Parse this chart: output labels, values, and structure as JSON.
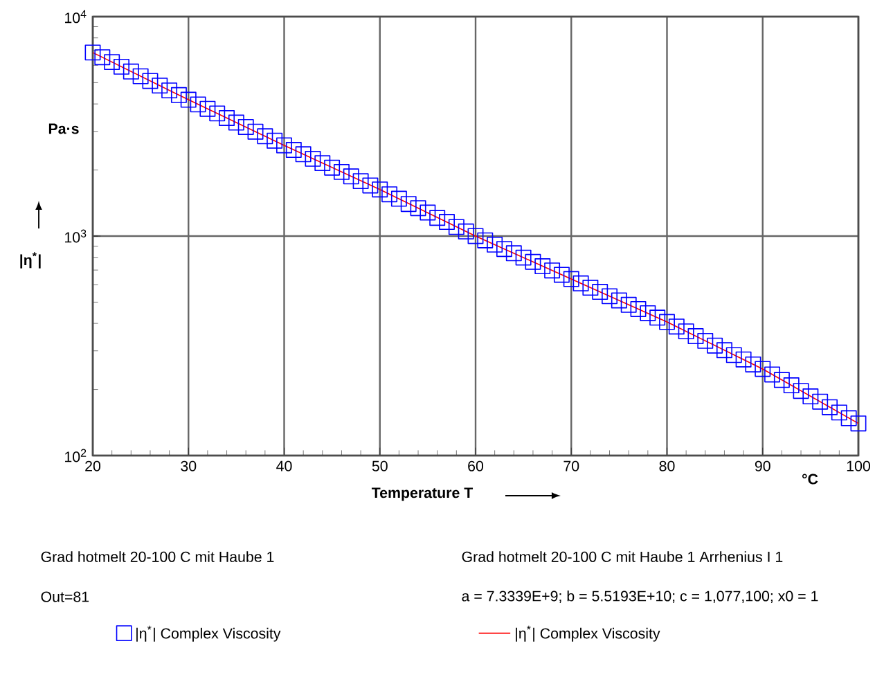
{
  "chart_data": {
    "type": "scatter",
    "xlabel": "Temperature T",
    "ylabel": "|η$^{*}$|",
    "x": [
      20,
      21,
      22,
      23,
      24,
      25,
      26,
      27,
      28,
      29,
      30,
      31,
      32,
      33,
      34,
      35,
      36,
      37,
      38,
      39,
      40,
      41,
      42,
      43,
      44,
      45,
      46,
      47,
      48,
      49,
      50,
      51,
      52,
      53,
      54,
      55,
      56,
      57,
      58,
      59,
      60,
      61,
      62,
      63,
      64,
      65,
      66,
      67,
      68,
      69,
      70,
      71,
      72,
      73,
      74,
      75,
      76,
      77,
      78,
      79,
      80,
      81,
      82,
      83,
      84,
      85,
      86,
      87,
      88,
      89,
      90,
      91,
      92,
      93,
      94,
      95,
      96,
      97,
      98,
      99,
      100
    ],
    "xlim": [
      20,
      100
    ],
    "xticks": [
      20,
      30,
      40,
      50,
      60,
      70,
      80,
      90,
      100
    ],
    "ylim": [
      100,
      10000
    ],
    "yticks": [
      {
        "value": 100,
        "label": "10$^{2}$"
      },
      {
        "value": 1000,
        "label": "10$^{3}$"
      },
      {
        "value": 10000,
        "label": "10$^{4}$"
      }
    ],
    "log": "y",
    "grid": true,
    "legend": "bottom",
    "marker": "square",
    "series": [
      {
        "name": "|η$^{*}$|   Complex Viscosity",
        "color": "#0000ff",
        "values": [
          6860,
          6530,
          6210,
          5910,
          5620,
          5350,
          5090,
          4850,
          4610,
          4390,
          4180,
          3980,
          3800,
          3620,
          3450,
          3290,
          3140,
          2990,
          2850,
          2720,
          2590,
          2470,
          2360,
          2250,
          2150,
          2050,
          1960,
          1870,
          1780,
          1700,
          1630,
          1550,
          1480,
          1400,
          1340,
          1280,
          1210,
          1160,
          1100,
          1050,
          1000,
          956,
          914,
          873,
          835,
          798,
          763,
          729,
          697,
          666,
          637,
          609,
          582,
          557,
          532,
          509,
          486,
          465,
          445,
          425,
          406,
          387,
          368,
          350,
          333,
          317,
          302,
          287,
          274,
          260,
          248,
          234,
          221,
          209,
          197,
          186,
          176,
          166,
          157,
          148,
          140
        ]
      },
      {
        "name": "|η$^{*}$|   Complex Viscosity",
        "type": "line",
        "color": "#ff0000",
        "marker": "none",
        "line_style": "solid",
        "x": [
          20,
          30,
          40,
          50,
          60,
          70,
          80,
          90,
          100
        ],
        "values": [
          6860,
          4180,
          2590,
          1630,
          1000,
          637,
          406,
          248,
          140
        ]
      }
    ],
    "annotations": [
      "Pa·s",
      "°C",
      "Grad hotmelt 20-100 C mit Haube 1",
      "Out=81",
      "Grad hotmelt 20-100 C mit Haube 1 Arrhenius I 1",
      "a = 7.3339E+9; b = 5.5193E+10; c = 1,077,100; x0 = 1"
    ]
  }
}
